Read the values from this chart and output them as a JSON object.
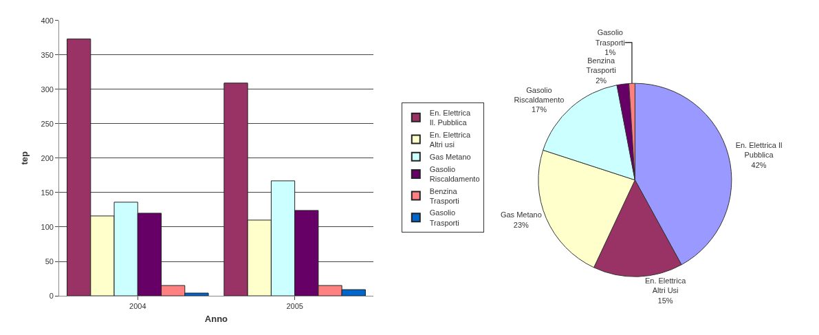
{
  "chart_data": [
    {
      "type": "bar",
      "xlabel": "Anno",
      "ylabel": "tep",
      "categories": [
        "2004",
        "2005"
      ],
      "ylim": [
        0,
        400
      ],
      "yticks": [
        0,
        50,
        100,
        150,
        200,
        250,
        300,
        350,
        400
      ],
      "grid": "y",
      "legend": "right",
      "series": [
        {
          "name": "En. Elettrica Il. Pubblica",
          "color": "#993366",
          "values": [
            373,
            309
          ]
        },
        {
          "name": "En. Elettrica Altri usi",
          "color": "#ffffcc",
          "values": [
            116,
            110
          ]
        },
        {
          "name": "Gas Metano",
          "color": "#ccffff",
          "values": [
            136,
            167
          ]
        },
        {
          "name": "Gasolio Riscaldamento",
          "color": "#660066",
          "values": [
            120,
            124
          ]
        },
        {
          "name": "Benzina Trasporti",
          "color": "#ff8080",
          "values": [
            15,
            15
          ]
        },
        {
          "name": "Gasolio Trasporti",
          "color": "#0066cc",
          "values": [
            4,
            9
          ]
        }
      ]
    },
    {
      "type": "pie",
      "categories": [
        "En. Elettrica Il Pubblica",
        "En. Elettrica Altri Usi",
        "Gas Metano",
        "Gasolio Riscaldamento",
        "Benzina Trasporti",
        "Gasolio Trasporti"
      ],
      "values": [
        42,
        15,
        23,
        17,
        2,
        1
      ],
      "value_labels": [
        "42%",
        "15%",
        "23%",
        "17%",
        "2%",
        "1%"
      ],
      "colors": [
        "#9999ff",
        "#993366",
        "#ffffcc",
        "#ccffff",
        "#660066",
        "#ff8080"
      ]
    }
  ]
}
